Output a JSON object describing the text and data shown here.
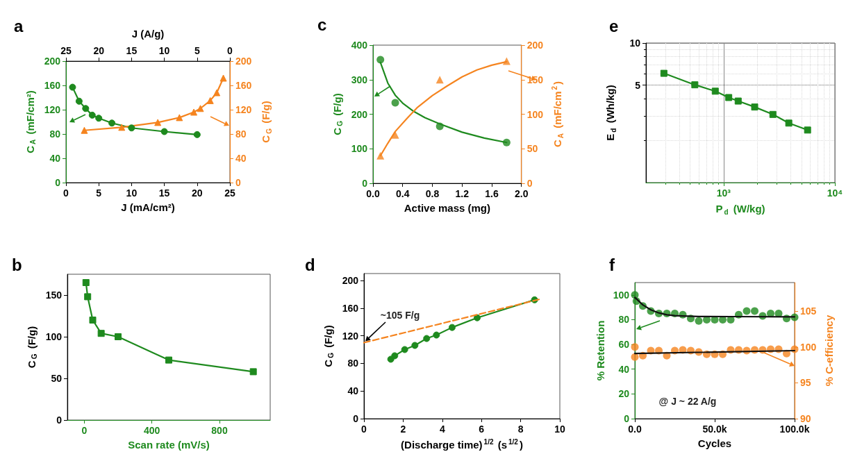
{
  "chart_data": [
    {
      "type": "line",
      "title": "a",
      "xlabel": "J (mA/cm²)",
      "ylabel": "C$_{A}$ (mF/cm²)",
      "x2label": "J (A/g)",
      "y2label": "C$_{G}$ (F/g)",
      "xlim": [
        0,
        25
      ],
      "xticks": [
        0,
        5,
        10,
        15,
        20,
        25
      ],
      "x2lim": [
        25,
        0
      ],
      "x2ticks": [
        25,
        20,
        15,
        10,
        5,
        0
      ],
      "ylim": [
        0,
        200
      ],
      "yticks": [
        0,
        40,
        80,
        120,
        160,
        200
      ],
      "y2lim": [
        0,
        200
      ],
      "y2ticks": [
        0,
        40,
        80,
        120,
        160,
        200
      ],
      "series": [
        {
          "color": "#1e8a1e",
          "marker": "circle",
          "x": [
            1,
            2,
            3,
            4,
            5,
            7,
            10,
            15,
            20
          ],
          "values": [
            157,
            134,
            122,
            111,
            106,
            98,
            90,
            84,
            79
          ]
        },
        {
          "color": "#f5841f",
          "marker": "triangle",
          "axis": "y2",
          "x": [
            2.8,
            8.5,
            14,
            17.3,
            19.5,
            20.5,
            22,
            23,
            24
          ],
          "values": [
            86,
            91,
            99,
            107,
            116,
            122,
            135,
            148,
            172
          ]
        }
      ]
    },
    {
      "type": "scatter",
      "title": "c",
      "xlabel": "Active mass (mg)",
      "ylabel": "C$_{G}$ (F/g)",
      "y2label": "C$_{A}$ (mF/cm$^{2}$)",
      "xlim": [
        0,
        2
      ],
      "xticks": [
        {
          "value": 0,
          "label": "0.0"
        },
        {
          "value": 0.4,
          "label": "0.4"
        },
        {
          "value": 0.8,
          "label": "0.8"
        },
        {
          "value": 1.2,
          "label": "1.2"
        },
        {
          "value": 1.6,
          "label": "1.6"
        },
        {
          "value": 2,
          "label": "2.0"
        }
      ],
      "ylim": [
        0,
        400
      ],
      "yticks": [
        0,
        100,
        200,
        300,
        400
      ],
      "y2lim": [
        0,
        200
      ],
      "y2ticks": [
        0,
        50,
        100,
        150,
        200
      ],
      "series": [
        {
          "color": "#1e8a1e",
          "marker": "circle",
          "x": [
            0.1,
            0.3,
            0.9,
            1.8
          ],
          "values": [
            358,
            233,
            165,
            118
          ]
        },
        {
          "color": "#f5841f",
          "marker": "triangle",
          "axis": "y2",
          "x": [
            0.1,
            0.3,
            0.9,
            1.8
          ],
          "values": [
            40,
            70,
            150,
            177
          ]
        },
        {
          "type": "line",
          "color": "#1e8a1e",
          "marker": "none",
          "x": [
            0.1,
            0.2,
            0.3,
            0.4,
            0.55,
            0.7,
            0.9,
            1.2,
            1.5,
            1.8
          ],
          "values": [
            350,
            290,
            255,
            232,
            208,
            190,
            172,
            148,
            131,
            118
          ]
        },
        {
          "type": "line",
          "color": "#f5841f",
          "marker": "none",
          "axis": "y2",
          "x": [
            0.1,
            0.2,
            0.3,
            0.45,
            0.6,
            0.8,
            1.0,
            1.2,
            1.4,
            1.6,
            1.8
          ],
          "values": [
            40,
            58,
            75,
            93,
            110,
            127,
            141,
            154,
            164,
            171,
            176
          ]
        }
      ]
    },
    {
      "type": "line",
      "title": "e",
      "xlabel": "P$_{d}$ (W/kg)",
      "ylabel": "E$_{d}$ (Wh/kg)",
      "log": "xy",
      "grid": true,
      "marker": "square",
      "xlim": [
        200,
        10000
      ],
      "xticks": [
        {
          "value": 1000,
          "label": "10³"
        },
        {
          "value": 10000,
          "label": "10⁴"
        }
      ],
      "ylim": [
        1,
        10
      ],
      "yticks": [
        5,
        10
      ],
      "series": [
        {
          "color": "#1e8a1e",
          "x": [
            290,
            550,
            840,
            1110,
            1350,
            1900,
            2770,
            3850,
            5680
          ],
          "values": [
            6.07,
            5.02,
            4.52,
            4.07,
            3.84,
            3.48,
            3.08,
            2.67,
            2.38
          ]
        }
      ]
    },
    {
      "type": "line",
      "title": "b",
      "xlabel": "Scan rate (mV/s)",
      "ylabel": "C$_{G}$ (F/g)",
      "marker": "square",
      "xlim": [
        -100,
        1100
      ],
      "xticks": [
        0,
        400,
        800
      ],
      "ylim": [
        0,
        175
      ],
      "yticks": [
        0,
        50,
        100,
        150
      ],
      "series": [
        {
          "color": "#1e8a1e",
          "x": [
            10,
            20,
            50,
            100,
            200,
            500,
            1000
          ],
          "values": [
            165,
            148,
            120,
            104,
            100,
            72,
            58
          ]
        }
      ]
    },
    {
      "type": "line",
      "title": "d",
      "xlabel": "(Discharge time)$^{1/2}$ (s$^{1/2}$)",
      "ylabel": "C$_{G}$ (F/g)",
      "xlim": [
        0,
        10
      ],
      "xticks": [
        0,
        2,
        4,
        6,
        8,
        10
      ],
      "ylim": [
        0,
        210
      ],
      "yticks": [
        0,
        40,
        80,
        120,
        160,
        200
      ],
      "annotations": [
        {
          "text": "~105 F/g",
          "x": 0,
          "y": 110
        }
      ],
      "series": [
        {
          "color": "#1e8a1e",
          "marker": "circle",
          "x": [
            1.37,
            1.57,
            2.08,
            2.6,
            3.2,
            3.7,
            4.5,
            5.78,
            8.71
          ],
          "values": [
            86,
            91,
            100,
            106,
            116,
            121,
            132,
            146,
            172
          ]
        },
        {
          "color": "#f5841f",
          "marker": "none",
          "line_style": "dashed",
          "x": [
            0,
            9
          ],
          "values": [
            110,
            173
          ]
        }
      ]
    },
    {
      "type": "scatter",
      "title": "f",
      "xlabel": "Cycles",
      "ylabel": "% Retention",
      "y2label": "% C-efficiency",
      "xlim": [
        0,
        100000
      ],
      "xticks": [
        {
          "value": 0,
          "label": "0.0"
        },
        {
          "value": 50000,
          "label": "50.0k"
        },
        {
          "value": 100000,
          "label": "100.0k"
        }
      ],
      "ylim": [
        0,
        110
      ],
      "yticks": [
        0,
        20,
        40,
        60,
        80,
        100
      ],
      "y2lim": [
        90,
        109
      ],
      "y2ticks": [
        90,
        95,
        100,
        105
      ],
      "annotations": [
        "@ J ~ 22 A/g"
      ],
      "series": [
        {
          "color": "#1e8a1e",
          "marker": "circle",
          "x": [
            0,
            1000,
            5000,
            10000,
            15000,
            20000,
            25000,
            30000,
            35000,
            40000,
            45000,
            50000,
            55000,
            60000,
            65000,
            70000,
            75000,
            80000,
            85000,
            90000,
            95000,
            100000
          ],
          "values": [
            100,
            95,
            91,
            87,
            85,
            85,
            85,
            84,
            81,
            79,
            80,
            80,
            80,
            80,
            84,
            87,
            87,
            83,
            85,
            85,
            81,
            82
          ]
        },
        {
          "color": "#f5841f",
          "marker": "circle",
          "axis": "y2",
          "x": [
            0,
            0,
            5000,
            10000,
            15000,
            20000,
            25000,
            30000,
            35000,
            40000,
            45000,
            50000,
            55000,
            60000,
            65000,
            70000,
            75000,
            80000,
            85000,
            90000,
            95000,
            100000
          ],
          "values": [
            100,
            98.6,
            98.8,
            99.5,
            99.5,
            98.8,
            99.5,
            99.6,
            99.5,
            99.3,
            99,
            99,
            99,
            99.6,
            99.6,
            99.5,
            99.6,
            99.6,
            99.7,
            99.7,
            99.1,
            99.7
          ]
        },
        {
          "type": "line",
          "color": "#111111",
          "marker": "none",
          "x": [
            0,
            5000,
            10000,
            15000,
            20000,
            25000,
            30000,
            40000,
            60000,
            100000
          ],
          "values": [
            98,
            92,
            88,
            85.5,
            84,
            83.3,
            83,
            82.6,
            82.5,
            82.3
          ]
        },
        {
          "type": "line",
          "color": "#111111",
          "marker": "none",
          "axis": "y2",
          "x": [
            0,
            100000
          ],
          "values": [
            99.1,
            99.5
          ]
        }
      ]
    }
  ]
}
